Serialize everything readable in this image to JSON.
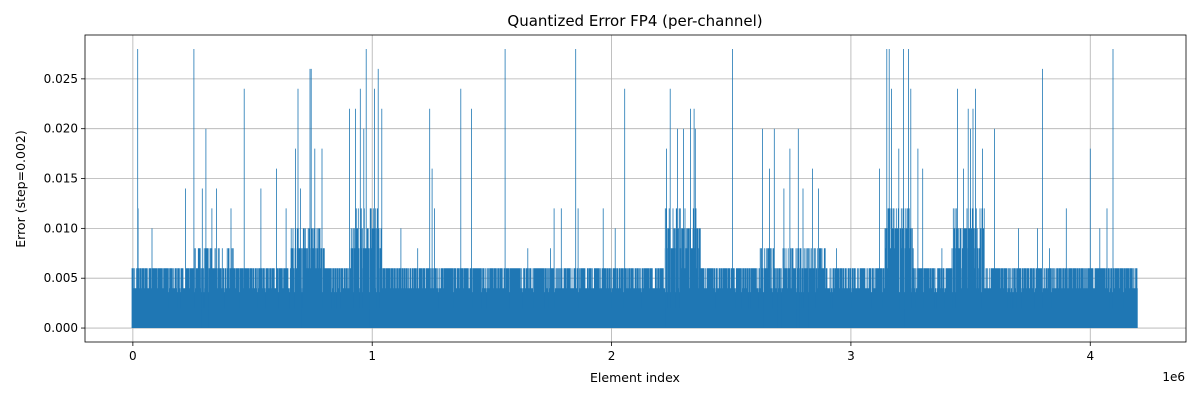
{
  "chart_data": {
    "type": "line",
    "title": "Quantized Error FP4 (per-channel)",
    "xlabel": "Element index",
    "ylabel": "Error (step=0.002)",
    "x_offset_label": "1e6",
    "x_tick_labels": [
      "0",
      "1",
      "2",
      "3",
      "4"
    ],
    "x_ticks": [
      0,
      1000000,
      2000000,
      3000000,
      4000000
    ],
    "y_tick_labels": [
      "0.000",
      "0.005",
      "0.010",
      "0.015",
      "0.020",
      "0.025"
    ],
    "y_ticks": [
      0,
      0.005,
      0.01,
      0.015,
      0.02,
      0.025
    ],
    "xlim": [
      -200000,
      4400000
    ],
    "ylim": [
      -0.0014,
      0.0294
    ],
    "x_range": [
      0,
      4194304
    ],
    "step": 0.002,
    "grid": true,
    "series": [
      {
        "color": "#1f77b4",
        "baseline_max": 0.006,
        "regions": [
          {
            "x": [
              660000,
              800000
            ],
            "max": 0.01
          },
          {
            "x": [
              910000,
              1040000
            ],
            "max": 0.012
          },
          {
            "x": [
              2220000,
              2370000
            ],
            "max": 0.012
          },
          {
            "x": [
              2620000,
              2900000
            ],
            "max": 0.008
          },
          {
            "x": [
              3140000,
              3260000
            ],
            "max": 0.012
          },
          {
            "x": [
              3420000,
              3560000
            ],
            "max": 0.012
          },
          {
            "x": [
              250000,
              420000
            ],
            "max": 0.008
          }
        ],
        "spikes": [
          [
            20000,
            0.028
          ],
          [
            22000,
            0.012
          ],
          [
            80000,
            0.01
          ],
          [
            220000,
            0.014
          ],
          [
            255000,
            0.028
          ],
          [
            290000,
            0.014
          ],
          [
            305000,
            0.02
          ],
          [
            330000,
            0.012
          ],
          [
            350000,
            0.014
          ],
          [
            410000,
            0.012
          ],
          [
            465000,
            0.024
          ],
          [
            535000,
            0.014
          ],
          [
            600000,
            0.016
          ],
          [
            640000,
            0.012
          ],
          [
            680000,
            0.018
          ],
          [
            690000,
            0.024
          ],
          [
            700000,
            0.014
          ],
          [
            740000,
            0.026
          ],
          [
            745000,
            0.026
          ],
          [
            760000,
            0.018
          ],
          [
            790000,
            0.018
          ],
          [
            905000,
            0.022
          ],
          [
            930000,
            0.022
          ],
          [
            950000,
            0.024
          ],
          [
            965000,
            0.02
          ],
          [
            975000,
            0.028
          ],
          [
            1010000,
            0.024
          ],
          [
            1025000,
            0.026
          ],
          [
            1040000,
            0.022
          ],
          [
            1120000,
            0.01
          ],
          [
            1190000,
            0.008
          ],
          [
            1240000,
            0.022
          ],
          [
            1250000,
            0.016
          ],
          [
            1260000,
            0.012
          ],
          [
            1370000,
            0.024
          ],
          [
            1415000,
            0.022
          ],
          [
            1555000,
            0.028
          ],
          [
            1650000,
            0.008
          ],
          [
            1745000,
            0.008
          ],
          [
            1760000,
            0.012
          ],
          [
            1790000,
            0.012
          ],
          [
            1850000,
            0.028
          ],
          [
            1860000,
            0.012
          ],
          [
            1965000,
            0.012
          ],
          [
            2015000,
            0.01
          ],
          [
            2055000,
            0.024
          ],
          [
            2230000,
            0.018
          ],
          [
            2245000,
            0.024
          ],
          [
            2275000,
            0.02
          ],
          [
            2300000,
            0.02
          ],
          [
            2330000,
            0.022
          ],
          [
            2345000,
            0.022
          ],
          [
            2350000,
            0.02
          ],
          [
            2420000,
            0.006
          ],
          [
            2450000,
            0.006
          ],
          [
            2505000,
            0.028
          ],
          [
            2630000,
            0.02
          ],
          [
            2660000,
            0.016
          ],
          [
            2680000,
            0.02
          ],
          [
            2720000,
            0.014
          ],
          [
            2745000,
            0.018
          ],
          [
            2780000,
            0.02
          ],
          [
            2800000,
            0.014
          ],
          [
            2840000,
            0.016
          ],
          [
            2865000,
            0.014
          ],
          [
            2940000,
            0.008
          ],
          [
            3120000,
            0.016
          ],
          [
            3150000,
            0.028
          ],
          [
            3160000,
            0.028
          ],
          [
            3170000,
            0.024
          ],
          [
            3200000,
            0.018
          ],
          [
            3220000,
            0.028
          ],
          [
            3240000,
            0.028
          ],
          [
            3250000,
            0.024
          ],
          [
            3280000,
            0.018
          ],
          [
            3300000,
            0.016
          ],
          [
            3380000,
            0.008
          ],
          [
            3445000,
            0.024
          ],
          [
            3470000,
            0.016
          ],
          [
            3490000,
            0.022
          ],
          [
            3500000,
            0.02
          ],
          [
            3510000,
            0.022
          ],
          [
            3520000,
            0.024
          ],
          [
            3550000,
            0.018
          ],
          [
            3600000,
            0.02
          ],
          [
            3700000,
            0.01
          ],
          [
            3780000,
            0.01
          ],
          [
            3800000,
            0.026
          ],
          [
            3830000,
            0.008
          ],
          [
            3900000,
            0.012
          ],
          [
            4000000,
            0.018
          ],
          [
            4040000,
            0.01
          ],
          [
            4070000,
            0.012
          ],
          [
            4095000,
            0.028
          ],
          [
            4150000,
            0.006
          ]
        ]
      }
    ]
  }
}
